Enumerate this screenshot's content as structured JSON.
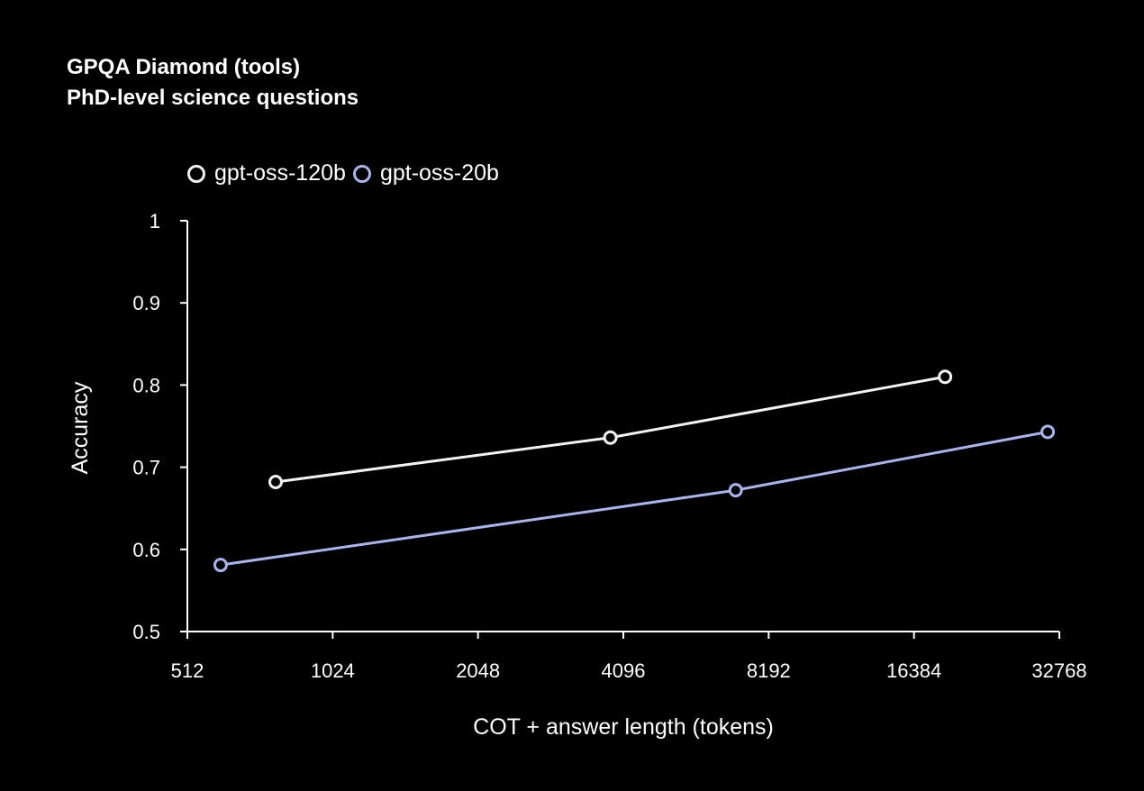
{
  "chart_data": {
    "type": "line",
    "title": "GPQA Diamond (tools)",
    "subtitle": "PhD-level science questions",
    "xlabel": "COT + answer length (tokens)",
    "ylabel": "Accuracy",
    "x_scale": "log2",
    "xlim": [
      512,
      32768
    ],
    "ylim": [
      0.5,
      1.0
    ],
    "x_ticks": [
      512,
      1024,
      2048,
      4096,
      8192,
      16384,
      32768
    ],
    "y_ticks": [
      0.5,
      0.6,
      0.7,
      0.8,
      0.9,
      1.0
    ],
    "y_tick_labels": [
      "0.5",
      "0.6",
      "0.7",
      "0.8",
      "0.9",
      "1"
    ],
    "grid": false,
    "legend_position": "top-left",
    "series": [
      {
        "name": "gpt-oss-120b",
        "color": "#f2f2f2",
        "x": [
          780,
          3850,
          19000
        ],
        "y": [
          0.682,
          0.736,
          0.81
        ]
      },
      {
        "name": "gpt-oss-20b",
        "color": "#a9b3ec",
        "x": [
          600,
          7000,
          31000
        ],
        "y": [
          0.581,
          0.672,
          0.743
        ]
      }
    ]
  }
}
